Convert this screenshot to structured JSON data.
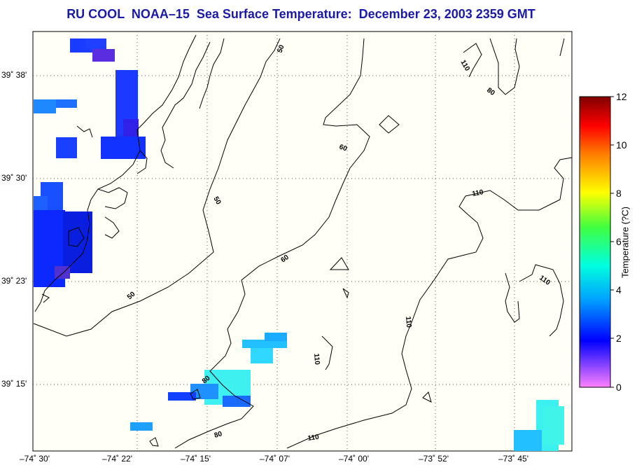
{
  "title": "RU COOL  NOAA–15  Sea Surface Temperature:  December 23, 2003 2359 GMT",
  "lat_labels": [
    "39˚ 38'",
    "39˚ 30'",
    "39˚ 23'",
    "39˚ 15'"
  ],
  "lon_labels": [
    "–74˚ 30'",
    "–74˚ 22'",
    "–74˚ 15'",
    "–74˚ 07'",
    "–74˚ 00'",
    "–73˚ 52'",
    "–73˚ 45'"
  ],
  "colorbar": {
    "label": "Temperature (?C)",
    "ticks": [
      "12",
      "10",
      "8",
      "6",
      "4",
      "2",
      "0"
    ],
    "min": 0,
    "max": 12
  },
  "contour_labels": [
    "50",
    "50",
    "50",
    "60",
    "60",
    "80",
    "80",
    "80",
    "110",
    "110",
    "110",
    "110",
    "110",
    "110",
    "110"
  ]
}
